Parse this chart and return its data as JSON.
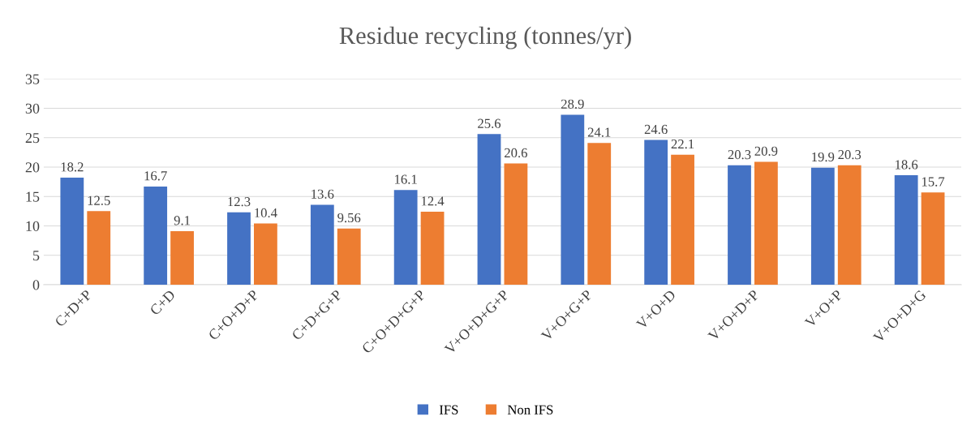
{
  "chart_data": {
    "type": "bar",
    "title": "Residue recycling (tonnes/yr)",
    "categories": [
      "C+D+P",
      "C+D",
      "C+O+D+P",
      "C+D+G+P",
      "C+O+D+G+P",
      "V+O+D+G+P",
      "V+O+G+P",
      "V+O+D",
      "V+O+D+P",
      "V+O+P",
      "V+O+D+G"
    ],
    "series": [
      {
        "name": "IFS",
        "color": "#4472c4",
        "values": [
          18.2,
          16.7,
          12.3,
          13.6,
          16.1,
          25.6,
          28.9,
          24.6,
          20.3,
          19.9,
          18.6
        ]
      },
      {
        "name": "Non IFS",
        "color": "#ed7d31",
        "values": [
          12.5,
          9.1,
          10.4,
          9.56,
          12.4,
          20.6,
          24.1,
          22.1,
          20.9,
          20.3,
          15.7
        ]
      }
    ],
    "ylim": [
      0,
      35
    ],
    "yticks": [
      0,
      5,
      10,
      15,
      20,
      25,
      30,
      35
    ],
    "grid": "y",
    "legend": "bottom",
    "data_labels": true
  }
}
